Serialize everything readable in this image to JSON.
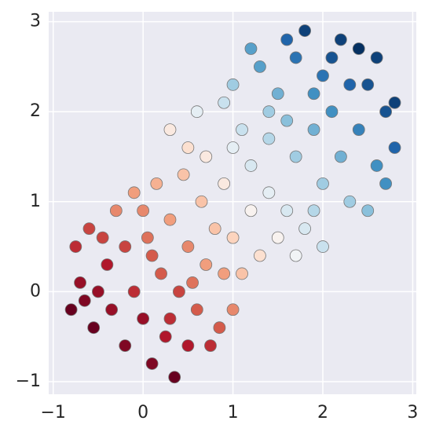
{
  "chart_data": {
    "type": "scatter",
    "x": [
      -0.8,
      -0.7,
      -0.75,
      -0.6,
      -0.55,
      -0.4,
      -0.3,
      -0.2,
      -0.1,
      -0.1,
      0.0,
      0.05,
      0.1,
      0.15,
      0.2,
      0.25,
      0.3,
      0.35,
      0.4,
      0.45,
      0.5,
      0.5,
      0.6,
      0.65,
      0.7,
      0.75,
      -0.5,
      -0.65,
      -0.35,
      -0.2,
      0.0,
      0.3,
      0.1,
      -0.45,
      0.55,
      0.85,
      0.9,
      1.0,
      1.1,
      0.8,
      0.9,
      1.0,
      1.2,
      1.3,
      0.7,
      1.0,
      1.4,
      1.5,
      0.5,
      0.3,
      1.6,
      1.2,
      1.7,
      1.8,
      0.6,
      0.9,
      1.1,
      1.4,
      1.9,
      2.0,
      1.0,
      1.3,
      1.5,
      1.7,
      1.8,
      2.0,
      2.1,
      2.2,
      2.3,
      2.4,
      2.5,
      2.6,
      2.7,
      2.8,
      2.4,
      2.2,
      1.6,
      2.6,
      2.8,
      1.9,
      1.6,
      2.0,
      2.5,
      1.4,
      2.3,
      1.9,
      2.1,
      2.7,
      1.2,
      1.7
    ],
    "y": [
      -0.2,
      0.1,
      0.5,
      0.7,
      -0.4,
      0.3,
      0.9,
      -0.6,
      0.0,
      1.1,
      -0.3,
      0.6,
      -0.8,
      1.2,
      0.2,
      -0.5,
      0.8,
      -0.95,
      0.0,
      1.3,
      -0.6,
      0.5,
      -0.2,
      1.0,
      0.3,
      -0.6,
      0.0,
      -0.1,
      -0.2,
      0.5,
      0.9,
      -0.3,
      0.4,
      0.6,
      0.1,
      -0.4,
      0.2,
      -0.2,
      0.2,
      0.7,
      1.2,
      0.6,
      0.9,
      0.4,
      1.5,
      1.6,
      1.1,
      0.6,
      1.6,
      1.8,
      0.9,
      1.4,
      0.4,
      0.7,
      2.0,
      2.1,
      1.8,
      1.7,
      0.9,
      0.5,
      2.3,
      2.5,
      2.2,
      2.6,
      2.9,
      2.4,
      2.0,
      1.5,
      1.0,
      1.8,
      2.3,
      1.4,
      2.0,
      1.6,
      2.7,
      2.8,
      2.8,
      2.6,
      2.1,
      1.8,
      1.9,
      1.2,
      0.9,
      2.0,
      2.3,
      2.2,
      2.6,
      1.2,
      2.7,
      1.5
    ],
    "c": [
      -0.5,
      -0.3,
      -0.1,
      0.0,
      -0.5,
      -0.2,
      0.3,
      -0.4,
      -0.1,
      0.4,
      -0.3,
      0.2,
      -0.4,
      0.5,
      0.1,
      -0.2,
      0.4,
      -0.5,
      0.0,
      0.6,
      -0.2,
      0.3,
      0.1,
      0.6,
      0.4,
      -0.1,
      -0.3,
      -0.4,
      -0.3,
      0.0,
      0.3,
      -0.1,
      0.1,
      0.0,
      0.2,
      0.1,
      0.4,
      0.3,
      0.6,
      0.6,
      0.9,
      0.7,
      1.0,
      0.8,
      0.9,
      1.2,
      1.2,
      1.0,
      0.8,
      0.9,
      1.3,
      1.3,
      1.1,
      1.3,
      1.2,
      1.4,
      1.4,
      1.5,
      1.5,
      1.4,
      1.6,
      1.9,
      1.8,
      2.2,
      2.5,
      2.2,
      2.0,
      1.8,
      1.6,
      2.1,
      2.4,
      2.0,
      2.4,
      2.3,
      2.6,
      2.5,
      2.3,
      2.5,
      2.5,
      1.8,
      1.7,
      1.6,
      1.7,
      1.6,
      2.3,
      2.0,
      2.4,
      2.0,
      1.9,
      1.6
    ],
    "clim": [
      -0.5,
      2.6
    ],
    "colormap": [
      "#67001f",
      "#b2182b",
      "#d6604d",
      "#f4a582",
      "#fddbc7",
      "#f7f7f7",
      "#d1e5f0",
      "#92c5de",
      "#4393c3",
      "#2166ac",
      "#053061"
    ],
    "edgecolor": "#777777",
    "xlim": [
      -1.05,
      3.04
    ],
    "ylim": [
      -1.14,
      3.11
    ],
    "xticks": [
      {
        "value": -1,
        "label": "−1"
      },
      0,
      1,
      2,
      3
    ],
    "yticks": [
      {
        "value": -1,
        "label": "−1"
      },
      0,
      1,
      2,
      3
    ],
    "grid": true
  }
}
